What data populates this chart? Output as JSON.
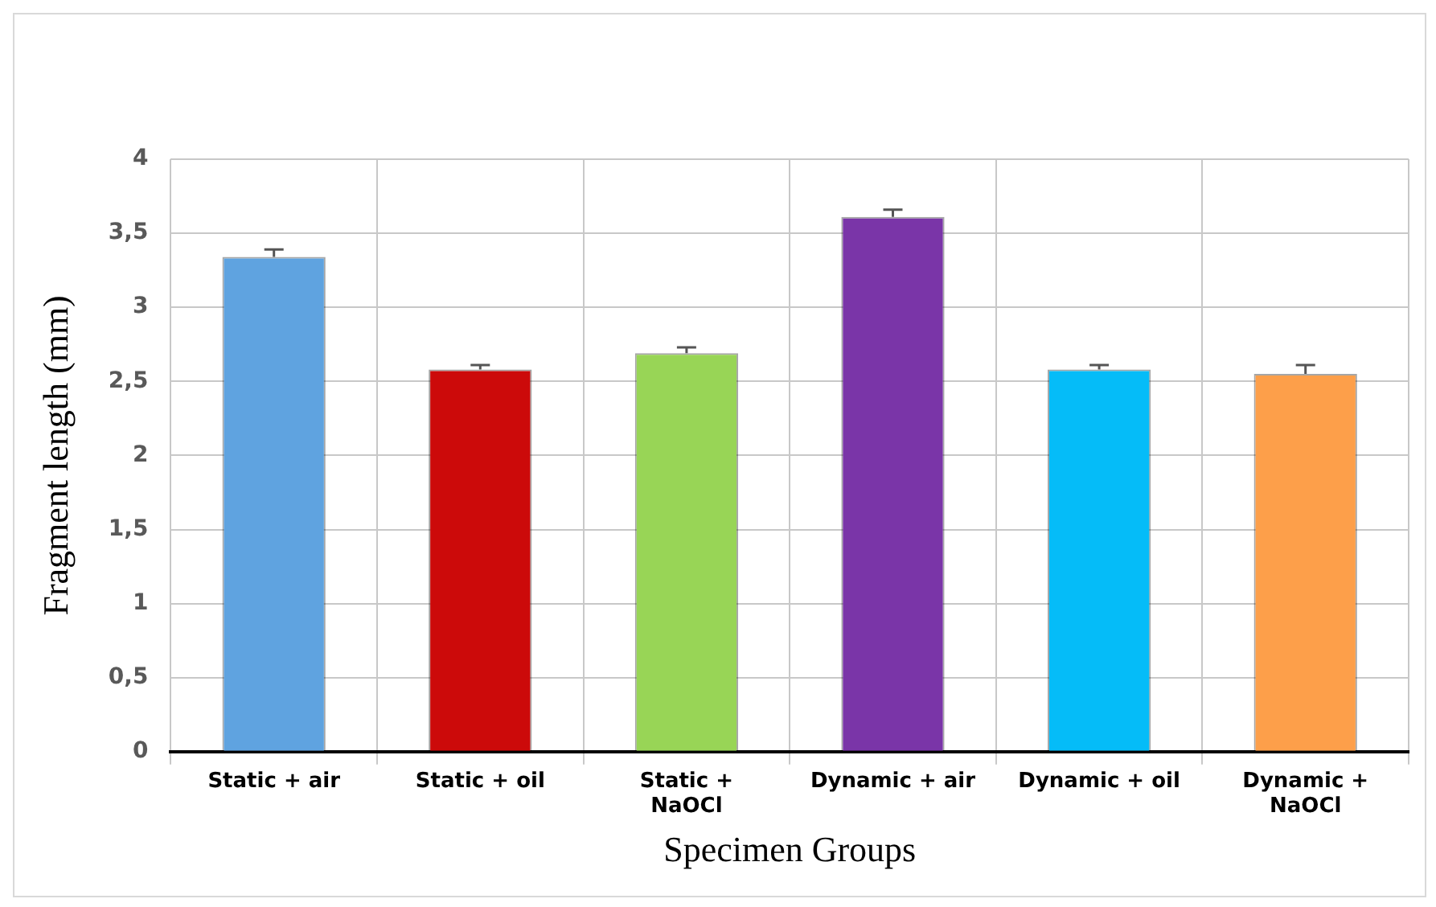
{
  "chart_data": {
    "type": "bar",
    "xlabel": "Specimen Groups",
    "ylabel": "Fragment length (mm)",
    "categories": [
      "Static + air",
      "Static + oil",
      "Static + NaOCl",
      "Dynamic + air",
      "Dynamic + oil",
      "Dynamic + NaOCl"
    ],
    "values": [
      3.34,
      2.58,
      2.69,
      3.61,
      2.58,
      2.55
    ],
    "colors": [
      "#5fa3e0",
      "#cc0a0a",
      "#98d556",
      "#7a35a8",
      "#05bcf8",
      "#fd9f4a"
    ],
    "errors": [
      [
        3.34,
        3.39
      ],
      [
        2.58,
        2.61
      ],
      [
        2.69,
        2.73
      ],
      [
        3.61,
        3.66
      ],
      [
        2.58,
        2.61
      ],
      [
        2.55,
        2.61
      ]
    ],
    "ylim": [
      0,
      4
    ],
    "yticks": [
      0,
      {
        "value": 0.5,
        "label": "0,5"
      },
      1,
      {
        "value": 1.5,
        "label": "1,5"
      },
      2,
      {
        "value": 2.5,
        "label": "2,5"
      },
      3,
      {
        "value": 3.5,
        "label": "3,5"
      },
      4
    ],
    "grid": true,
    "legend": false
  }
}
